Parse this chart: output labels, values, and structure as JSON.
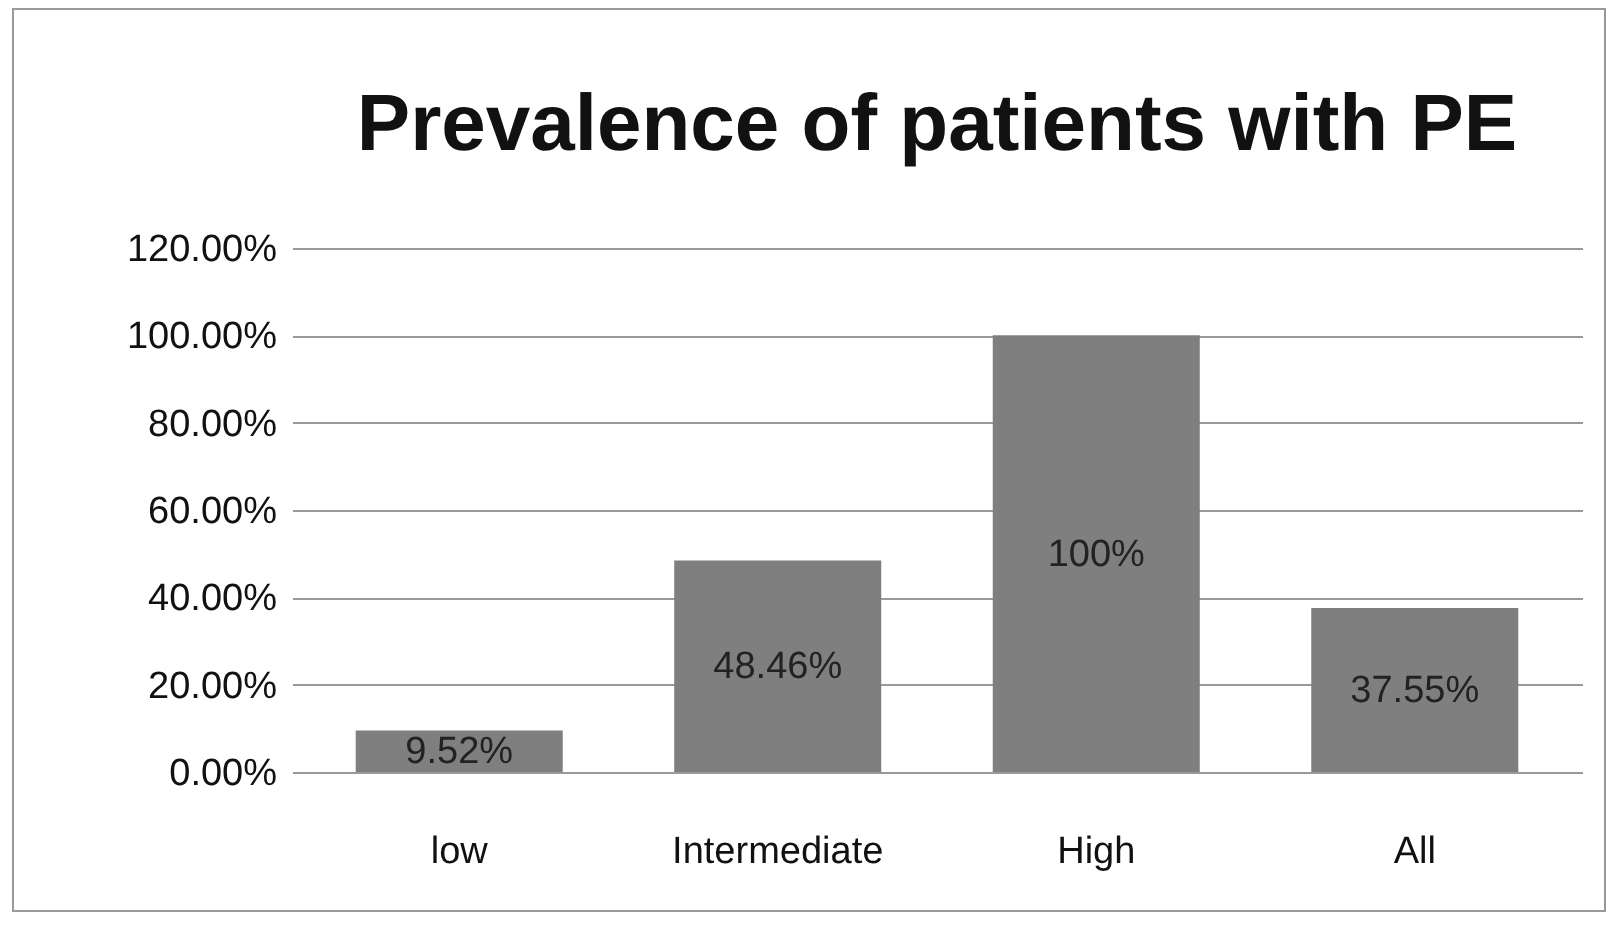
{
  "chart_data": {
    "type": "bar",
    "title": "Prevalence of patients with PE",
    "categories": [
      "low",
      "Intermediate",
      "High",
      "All"
    ],
    "values": [
      9.52,
      48.46,
      100,
      37.55
    ],
    "value_labels": [
      "9.52%",
      "48.46%",
      "100%",
      "37.55%"
    ],
    "color": "#7f7f7f",
    "ylim": [
      0,
      120
    ],
    "yticks": [
      {
        "value": 0,
        "label": "0.00%"
      },
      {
        "value": 20,
        "label": "20.00%"
      },
      {
        "value": 40,
        "label": "40.00%"
      },
      {
        "value": 60,
        "label": "60.00%"
      },
      {
        "value": 80,
        "label": "80.00%"
      },
      {
        "value": 100,
        "label": "100.00%"
      },
      {
        "value": 120,
        "label": "120.00%"
      }
    ],
    "grid": "y"
  }
}
